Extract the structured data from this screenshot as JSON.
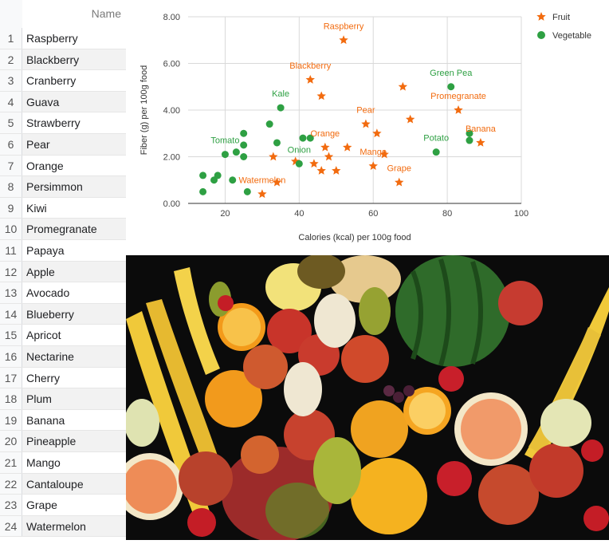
{
  "sheet": {
    "column_header": "Name",
    "rows": [
      {
        "num": "1",
        "name": "Raspberry"
      },
      {
        "num": "2",
        "name": "Blackberry"
      },
      {
        "num": "3",
        "name": "Cranberry"
      },
      {
        "num": "4",
        "name": "Guava"
      },
      {
        "num": "5",
        "name": "Strawberry"
      },
      {
        "num": "6",
        "name": "Pear"
      },
      {
        "num": "7",
        "name": "Orange"
      },
      {
        "num": "8",
        "name": "Persimmon"
      },
      {
        "num": "9",
        "name": "Kiwi"
      },
      {
        "num": "10",
        "name": "Promegranate"
      },
      {
        "num": "11",
        "name": "Papaya"
      },
      {
        "num": "12",
        "name": "Apple"
      },
      {
        "num": "13",
        "name": "Avocado"
      },
      {
        "num": "14",
        "name": "Blueberry"
      },
      {
        "num": "15",
        "name": "Apricot"
      },
      {
        "num": "16",
        "name": "Nectarine"
      },
      {
        "num": "17",
        "name": "Cherry"
      },
      {
        "num": "18",
        "name": "Plum"
      },
      {
        "num": "19",
        "name": "Banana"
      },
      {
        "num": "20",
        "name": "Pineapple"
      },
      {
        "num": "21",
        "name": "Mango"
      },
      {
        "num": "22",
        "name": "Cantaloupe"
      },
      {
        "num": "23",
        "name": "Grape"
      },
      {
        "num": "24",
        "name": "Watermelon"
      }
    ]
  },
  "chart_data": {
    "type": "scatter",
    "xlabel": "Calories (kcal) per 100g food",
    "ylabel": "Fiber (g) per 100g food",
    "xlim": [
      10,
      100
    ],
    "ylim": [
      0,
      8
    ],
    "xticks": [
      "20",
      "40",
      "60",
      "80",
      "100"
    ],
    "yticks": [
      "0.00",
      "2.00",
      "4.00",
      "6.00",
      "8.00"
    ],
    "grid": true,
    "legend_position": "top-right",
    "series": [
      {
        "name": "Fruit",
        "color": "#f26b0f",
        "marker": "star",
        "points": [
          [
            52,
            7.0
          ],
          [
            43,
            5.3
          ],
          [
            46,
            4.6
          ],
          [
            68,
            5.0
          ],
          [
            58,
            3.4
          ],
          [
            61,
            3.0
          ],
          [
            70,
            3.6
          ],
          [
            83,
            4.0
          ],
          [
            47,
            2.4
          ],
          [
            53,
            2.4
          ],
          [
            60,
            1.6
          ],
          [
            63,
            2.1
          ],
          [
            33,
            2.0
          ],
          [
            39,
            1.8
          ],
          [
            44,
            1.7
          ],
          [
            48,
            2.0
          ],
          [
            50,
            1.4
          ],
          [
            46,
            1.4
          ],
          [
            30,
            0.4
          ],
          [
            34,
            0.9
          ],
          [
            67,
            0.9
          ],
          [
            89,
            2.6
          ]
        ]
      },
      {
        "name": "Vegetable",
        "color": "#2ea043",
        "marker": "circle",
        "points": [
          [
            81,
            5.0
          ],
          [
            35,
            4.1
          ],
          [
            32,
            3.4
          ],
          [
            25,
            3.0
          ],
          [
            41,
            2.8
          ],
          [
            43,
            2.8
          ],
          [
            34,
            2.6
          ],
          [
            25,
            2.5
          ],
          [
            23,
            2.2
          ],
          [
            20,
            2.1
          ],
          [
            25,
            2.0
          ],
          [
            40,
            1.7
          ],
          [
            14,
            1.2
          ],
          [
            17,
            1.0
          ],
          [
            18,
            1.2
          ],
          [
            22,
            1.0
          ],
          [
            14,
            0.5
          ],
          [
            26,
            0.5
          ],
          [
            77,
            2.2
          ],
          [
            86,
            3.0
          ],
          [
            86,
            2.7
          ]
        ]
      }
    ],
    "annotations": [
      {
        "text": "Raspberry",
        "series": "Fruit",
        "x": 52,
        "y": 7.0
      },
      {
        "text": "Blackberry",
        "series": "Fruit",
        "x": 43,
        "y": 5.3
      },
      {
        "text": "Pear",
        "series": "Fruit",
        "x": 58,
        "y": 3.4
      },
      {
        "text": "Orange",
        "series": "Fruit",
        "x": 47,
        "y": 2.4
      },
      {
        "text": "Mango",
        "series": "Fruit",
        "x": 60,
        "y": 1.6
      },
      {
        "text": "Grape",
        "series": "Fruit",
        "x": 67,
        "y": 0.9
      },
      {
        "text": "Watermelon",
        "series": "Fruit",
        "x": 30,
        "y": 0.4
      },
      {
        "text": "Promegranate",
        "series": "Fruit",
        "x": 83,
        "y": 4.0
      },
      {
        "text": "Banana",
        "series": "Fruit",
        "x": 89,
        "y": 2.6
      },
      {
        "text": "Green Pea",
        "series": "Vegetable",
        "x": 81,
        "y": 5.0
      },
      {
        "text": "Kale",
        "series": "Vegetable",
        "x": 35,
        "y": 4.1
      },
      {
        "text": "Onion",
        "series": "Vegetable",
        "x": 40,
        "y": 1.7
      },
      {
        "text": "Tomato",
        "series": "Vegetable",
        "x": 20,
        "y": 2.1
      },
      {
        "text": "Potato",
        "series": "Vegetable",
        "x": 77,
        "y": 2.2
      }
    ]
  },
  "photo": {
    "subject": "assorted fruits",
    "colors": {
      "background": "#0b0b0b",
      "banana": "#f0c93a",
      "melon": "#2f6b2a",
      "apple": "#c8342a",
      "orange": "#f29a1c",
      "pear": "#a9b63a"
    }
  }
}
